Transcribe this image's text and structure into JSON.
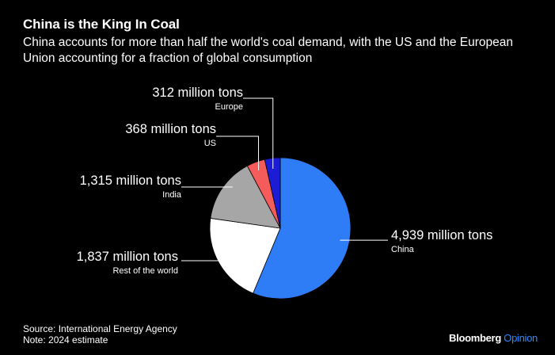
{
  "chart_data": {
    "type": "pie",
    "title": "China is the King In Coal",
    "subtitle": "China accounts for more than half the world's coal demand, with the US and the European Union accounting for a fraction of global consumption",
    "slices": [
      {
        "name": "China",
        "value": 4939,
        "label": "4,939 million tons",
        "color": "#2f7df6"
      },
      {
        "name": "Rest of the world",
        "value": 1837,
        "label": "1,837 million tons",
        "color": "#ffffff"
      },
      {
        "name": "India",
        "value": 1315,
        "label": "1,315 million tons",
        "color": "#a6a6a6"
      },
      {
        "name": "US",
        "value": 368,
        "label": "368 million tons",
        "color": "#f45b5b"
      },
      {
        "name": "Europe",
        "value": 312,
        "label": "312 million tons",
        "color": "#1c1cd4"
      }
    ],
    "source": "Source: International Energy Agency",
    "note": "Note: 2024 estimate"
  },
  "brand": {
    "name": "Bloomberg",
    "product": "Opinion"
  }
}
